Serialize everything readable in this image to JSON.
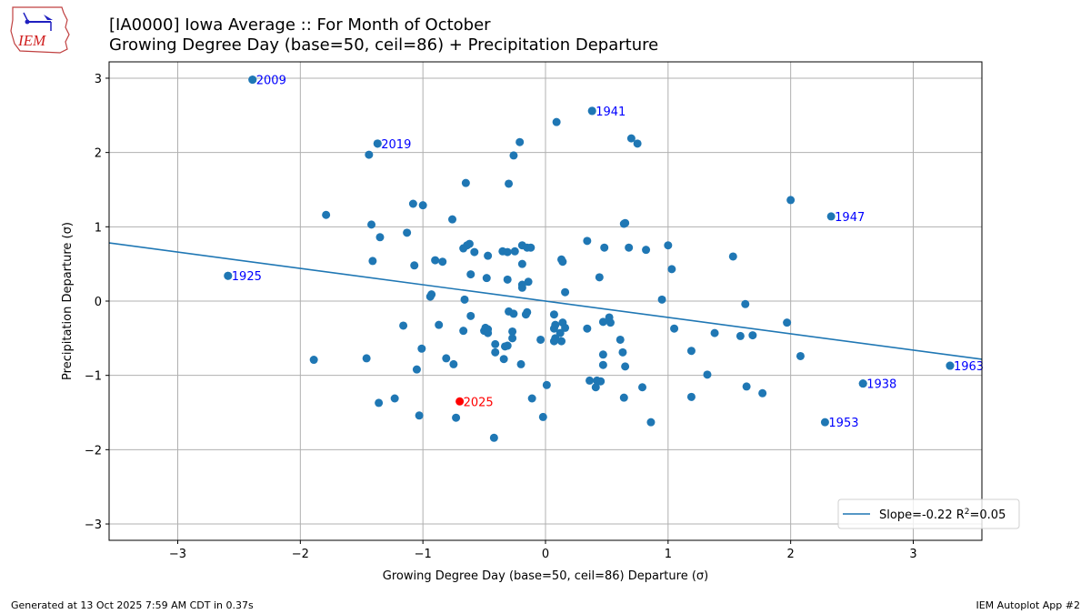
{
  "header": {
    "logo_text": "IEM",
    "title_line1": "[IA0000] Iowa Average :: For Month of October",
    "title_line2": "Growing Degree Day (base=50, ceil=86) + Precipitation Departure"
  },
  "footer": {
    "generated": "Generated at 13 Oct 2025 7:59 AM CDT in 0.37s",
    "app": "IEM Autoplot App #2"
  },
  "colors": {
    "points": "#1f77b4",
    "highlight": "#ff0000",
    "annotation": "#0000ff",
    "grid": "#b0b0b0",
    "fit_line": "#1f77b4"
  },
  "chart_data": {
    "type": "scatter",
    "title": "[IA0000] Iowa Average :: For Month of October",
    "subtitle": "Growing Degree Day (base=50, ceil=86) + Precipitation Departure",
    "xlabel": "Growing Degree Day (base=50, ceil=86) Departure (σ)",
    "ylabel": "Precipitation Departure (σ)",
    "xlim": [
      -3.56,
      3.56
    ],
    "ylim": [
      -3.22,
      3.22
    ],
    "xticks": [
      -3,
      -2,
      -1,
      0,
      1,
      2,
      3
    ],
    "yticks": [
      -3,
      -2,
      -1,
      0,
      1,
      2,
      3
    ],
    "xtick_labels": [
      "−3",
      "−2",
      "−1",
      "0",
      "1",
      "2",
      "3"
    ],
    "ytick_labels": [
      "−3",
      "−2",
      "−1",
      "0",
      "1",
      "2",
      "3"
    ],
    "grid": true,
    "legend": {
      "placement": "lower-right",
      "label_prefix": "Slope=-0.22 R",
      "label_sup": "2",
      "label_suffix": "=0.05"
    },
    "fit": {
      "slope": -0.22,
      "intercept": 0.0,
      "r2": 0.05
    },
    "points": [
      [
        -2.39,
        2.98
      ],
      [
        -1.37,
        2.12
      ],
      [
        -1.44,
        1.97
      ],
      [
        0.09,
        2.41
      ],
      [
        0.38,
        2.56
      ],
      [
        0.7,
        2.19
      ],
      [
        0.75,
        2.12
      ],
      [
        -0.21,
        2.14
      ],
      [
        -0.26,
        1.96
      ],
      [
        -0.3,
        1.58
      ],
      [
        -0.65,
        1.59
      ],
      [
        2.0,
        1.36
      ],
      [
        -1.79,
        1.16
      ],
      [
        -1.42,
        1.03
      ],
      [
        -0.76,
        1.1
      ],
      [
        0.65,
        1.05
      ],
      [
        0.64,
        1.04
      ],
      [
        -1.08,
        1.31
      ],
      [
        -1.0,
        1.29
      ],
      [
        -1.35,
        0.86
      ],
      [
        -1.13,
        0.92
      ],
      [
        -0.64,
        0.75
      ],
      [
        -0.62,
        0.77
      ],
      [
        -0.67,
        0.71
      ],
      [
        -0.58,
        0.66
      ],
      [
        -0.47,
        0.61
      ],
      [
        -0.35,
        0.67
      ],
      [
        -0.31,
        0.66
      ],
      [
        -0.25,
        0.67
      ],
      [
        -0.19,
        0.75
      ],
      [
        -0.15,
        0.72
      ],
      [
        -0.12,
        0.72
      ],
      [
        0.34,
        0.81
      ],
      [
        0.68,
        0.72
      ],
      [
        0.82,
        0.69
      ],
      [
        0.48,
        0.72
      ],
      [
        1.0,
        0.75
      ],
      [
        1.53,
        0.6
      ],
      [
        -1.41,
        0.54
      ],
      [
        -1.07,
        0.48
      ],
      [
        -0.84,
        0.53
      ],
      [
        -0.9,
        0.55
      ],
      [
        -0.61,
        0.36
      ],
      [
        -0.48,
        0.31
      ],
      [
        -0.31,
        0.29
      ],
      [
        -0.19,
        0.5
      ],
      [
        0.13,
        0.56
      ],
      [
        0.14,
        0.53
      ],
      [
        -0.14,
        0.26
      ],
      [
        -0.19,
        0.22
      ],
      [
        -0.19,
        0.18
      ],
      [
        0.44,
        0.32
      ],
      [
        1.03,
        0.43
      ],
      [
        -2.59,
        0.34
      ],
      [
        -0.93,
        0.09
      ],
      [
        -0.94,
        0.06
      ],
      [
        -0.66,
        0.02
      ],
      [
        0.16,
        0.12
      ],
      [
        0.95,
        0.02
      ],
      [
        1.63,
        -0.04
      ],
      [
        1.97,
        -0.29
      ],
      [
        -1.16,
        -0.33
      ],
      [
        -0.87,
        -0.32
      ],
      [
        -0.61,
        -0.2
      ],
      [
        -0.3,
        -0.14
      ],
      [
        -0.26,
        -0.17
      ],
      [
        -0.16,
        -0.18
      ],
      [
        -0.15,
        -0.15
      ],
      [
        0.07,
        -0.18
      ],
      [
        0.08,
        -0.32
      ],
      [
        0.07,
        -0.37
      ],
      [
        0.14,
        -0.29
      ],
      [
        0.16,
        -0.36
      ],
      [
        0.34,
        -0.37
      ],
      [
        0.47,
        -0.28
      ],
      [
        0.52,
        -0.22
      ],
      [
        0.53,
        -0.29
      ],
      [
        1.05,
        -0.37
      ],
      [
        1.38,
        -0.43
      ],
      [
        1.59,
        -0.47
      ],
      [
        1.69,
        -0.46
      ],
      [
        -0.67,
        -0.4
      ],
      [
        -0.49,
        -0.36
      ],
      [
        -0.5,
        -0.4
      ],
      [
        -0.47,
        -0.38
      ],
      [
        -0.47,
        -0.43
      ],
      [
        -0.27,
        -0.41
      ],
      [
        -0.27,
        -0.5
      ],
      [
        -0.04,
        -0.52
      ],
      [
        0.07,
        -0.54
      ],
      [
        0.13,
        -0.54
      ],
      [
        0.12,
        -0.43
      ],
      [
        0.08,
        -0.5
      ],
      [
        0.61,
        -0.52
      ],
      [
        0.47,
        -0.72
      ],
      [
        0.47,
        -0.86
      ],
      [
        0.63,
        -0.69
      ],
      [
        1.19,
        -0.67
      ],
      [
        1.32,
        -0.99
      ],
      [
        2.08,
        -0.74
      ],
      [
        3.3,
        -0.87
      ],
      [
        -1.89,
        -0.79
      ],
      [
        -1.46,
        -0.77
      ],
      [
        -1.05,
        -0.92
      ],
      [
        -0.75,
        -0.85
      ],
      [
        -0.41,
        -0.69
      ],
      [
        -0.41,
        -0.58
      ],
      [
        -0.33,
        -0.61
      ],
      [
        -0.34,
        -0.78
      ],
      [
        -0.31,
        -0.6
      ],
      [
        -0.2,
        -0.85
      ],
      [
        -1.01,
        -0.64
      ],
      [
        -0.81,
        -0.77
      ],
      [
        0.36,
        -1.07
      ],
      [
        0.42,
        -1.07
      ],
      [
        0.41,
        -1.16
      ],
      [
        0.45,
        -1.08
      ],
      [
        0.65,
        -0.88
      ],
      [
        0.79,
        -1.16
      ],
      [
        1.77,
        -1.24
      ],
      [
        2.59,
        -1.11
      ],
      [
        -1.23,
        -1.31
      ],
      [
        -1.36,
        -1.37
      ],
      [
        -0.11,
        -1.31
      ],
      [
        0.01,
        -1.13
      ],
      [
        0.64,
        -1.3
      ],
      [
        1.19,
        -1.29
      ],
      [
        1.64,
        -1.15
      ],
      [
        -1.03,
        -1.54
      ],
      [
        -0.73,
        -1.57
      ],
      [
        -0.02,
        -1.56
      ],
      [
        0.86,
        -1.63
      ],
      [
        -0.42,
        -1.84
      ]
    ],
    "labeled_points": [
      {
        "year": "2009",
        "x": -2.39,
        "y": 2.98
      },
      {
        "year": "2019",
        "x": -1.37,
        "y": 2.12
      },
      {
        "year": "1941",
        "x": 0.38,
        "y": 2.56
      },
      {
        "year": "1947",
        "x": 2.33,
        "y": 1.14
      },
      {
        "year": "1925",
        "x": -2.59,
        "y": 0.34
      },
      {
        "year": "1963",
        "x": 3.3,
        "y": -0.87
      },
      {
        "year": "1938",
        "x": 2.59,
        "y": -1.11
      },
      {
        "year": "1953",
        "x": 2.28,
        "y": -1.63
      }
    ],
    "highlight_point": {
      "year": "2025",
      "x": -0.7,
      "y": -1.35
    }
  }
}
